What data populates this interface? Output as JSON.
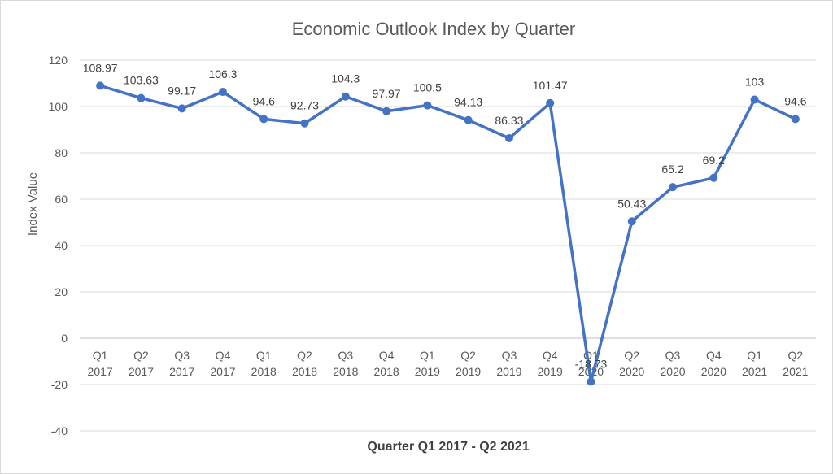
{
  "chart_data": {
    "type": "line",
    "title": "Economic Outlook Index by Quarter",
    "xlabel": "Quarter Q1 2017 - Q2 2021",
    "ylabel": "Index Value",
    "ylim": [
      -40,
      120
    ],
    "yticks": [
      120,
      100,
      80,
      60,
      40,
      20,
      0,
      -20,
      -40
    ],
    "grid": true,
    "legend": "none",
    "line_color": "#4472C4",
    "categories": [
      [
        "Q1",
        "2017"
      ],
      [
        "Q2",
        "2017"
      ],
      [
        "Q3",
        "2017"
      ],
      [
        "Q4",
        "2017"
      ],
      [
        "Q1",
        "2018"
      ],
      [
        "Q2",
        "2018"
      ],
      [
        "Q3",
        "2018"
      ],
      [
        "Q4",
        "2018"
      ],
      [
        "Q1",
        "2019"
      ],
      [
        "Q2",
        "2019"
      ],
      [
        "Q3",
        "2019"
      ],
      [
        "Q4",
        "2019"
      ],
      [
        "Q1",
        "2020"
      ],
      [
        "Q2",
        "2020"
      ],
      [
        "Q3",
        "2020"
      ],
      [
        "Q4",
        "2020"
      ],
      [
        "Q1",
        "2021"
      ],
      [
        "Q2",
        "2021"
      ]
    ],
    "values": [
      108.97,
      103.63,
      99.17,
      106.3,
      94.6,
      92.73,
      104.3,
      97.97,
      100.5,
      94.13,
      86.33,
      101.47,
      -18.73,
      50.43,
      65.2,
      69.2,
      103,
      94.6
    ],
    "data_labels": [
      "108.97",
      "103.63",
      "99.17",
      "106.3",
      "94.6",
      "92.73",
      "104.3",
      "97.97",
      "100.5",
      "94.13",
      "86.33",
      "101.47",
      "-18.73",
      "50.43",
      "65.2",
      "69.2",
      "103",
      "94.6"
    ]
  }
}
